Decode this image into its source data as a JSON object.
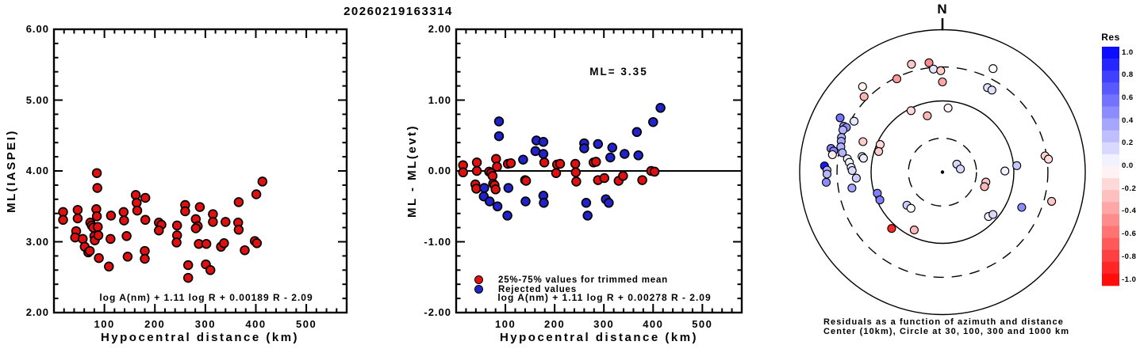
{
  "title": "20260219163314",
  "colors": {
    "accepted": "#e01010",
    "rejected": "#2222cc",
    "outline": "#000000",
    "res_positive": "#0000ff",
    "res_negative": "#ff0000"
  },
  "chart_data": [
    {
      "id": "ml-vs-distance",
      "type": "scatter",
      "xlabel": "Hypocentral distance (km)",
      "ylabel": "ML(IASPEI)",
      "xlim": [
        0,
        580
      ],
      "ylim": [
        2,
        6
      ],
      "x_minor_step": 20,
      "y_minor_step": 0.2,
      "xticks": [
        {
          "v": 100,
          "label": "100"
        },
        {
          "v": 200,
          "label": "200"
        },
        {
          "v": 300,
          "label": "300"
        },
        {
          "v": 400,
          "label": "400"
        },
        {
          "v": 500,
          "label": "500"
        }
      ],
      "yticks": [
        {
          "v": 2,
          "label": "2.00"
        },
        {
          "v": 3,
          "label": "3.00"
        },
        {
          "v": 4,
          "label": "4.00"
        },
        {
          "v": 5,
          "label": "5.00"
        },
        {
          "v": 6,
          "label": "6.00"
        }
      ],
      "annotation": "log A(nm) + 1.11 log R + 0.00189 R - 2.09",
      "point_color": "#e01010",
      "points": [
        [
          18,
          3.42
        ],
        [
          18,
          3.31
        ],
        [
          47,
          3.45
        ],
        [
          47,
          3.33
        ],
        [
          44,
          3.15
        ],
        [
          42,
          3.06
        ],
        [
          57,
          3.04
        ],
        [
          61,
          2.93
        ],
        [
          68,
          2.85
        ],
        [
          72,
          3.27
        ],
        [
          75,
          3.23
        ],
        [
          78,
          3.2
        ],
        [
          71,
          2.87
        ],
        [
          80,
          3.08
        ],
        [
          81,
          3.02
        ],
        [
          85,
          3.97
        ],
        [
          86,
          3.76
        ],
        [
          84,
          3.46
        ],
        [
          85,
          3.36
        ],
        [
          87,
          3.21
        ],
        [
          88,
          3.09
        ],
        [
          89,
          2.77
        ],
        [
          109,
          2.65
        ],
        [
          113,
          3.37
        ],
        [
          112,
          3.04
        ],
        [
          138,
          3.42
        ],
        [
          139,
          3.3
        ],
        [
          144,
          3.08
        ],
        [
          146,
          2.79
        ],
        [
          162,
          3.66
        ],
        [
          164,
          3.55
        ],
        [
          165,
          3.44
        ],
        [
          181,
          3.62
        ],
        [
          181,
          3.31
        ],
        [
          180,
          2.87
        ],
        [
          180,
          2.76
        ],
        [
          208,
          3.27
        ],
        [
          213,
          3.24
        ],
        [
          208,
          3.16
        ],
        [
          244,
          3.23
        ],
        [
          244,
          3.09
        ],
        [
          243,
          2.99
        ],
        [
          260,
          3.52
        ],
        [
          260,
          3.43
        ],
        [
          266,
          2.67
        ],
        [
          266,
          2.49
        ],
        [
          281,
          3.32
        ],
        [
          285,
          3.22
        ],
        [
          281,
          3.19
        ],
        [
          289,
          3.49
        ],
        [
          287,
          2.97
        ],
        [
          302,
          2.97
        ],
        [
          315,
          3.39
        ],
        [
          315,
          3.28
        ],
        [
          301,
          2.68
        ],
        [
          310,
          2.6
        ],
        [
          331,
          2.93
        ],
        [
          337,
          2.98
        ],
        [
          340,
          3.28
        ],
        [
          365,
          3.27
        ],
        [
          366,
          3.17
        ],
        [
          366,
          3.56
        ],
        [
          378,
          2.88
        ],
        [
          398,
          3.01
        ],
        [
          402,
          2.98
        ],
        [
          401,
          3.67
        ],
        [
          413,
          3.85
        ]
      ]
    },
    {
      "id": "residual-vs-distance",
      "type": "scatter",
      "xlabel": "Hypocentral distance (km)",
      "ylabel": "ML - ML(evt)",
      "xlim": [
        0,
        580
      ],
      "ylim": [
        -2,
        2
      ],
      "x_minor_step": 20,
      "y_minor_step": 0.2,
      "xticks": [
        {
          "v": 100,
          "label": "100"
        },
        {
          "v": 200,
          "label": "200"
        },
        {
          "v": 300,
          "label": "300"
        },
        {
          "v": 400,
          "label": "400"
        },
        {
          "v": 500,
          "label": "500"
        }
      ],
      "yticks": [
        {
          "v": -2,
          "label": "-2.00"
        },
        {
          "v": -1,
          "label": "-1.00"
        },
        {
          "v": 0,
          "label": "0.00"
        },
        {
          "v": 1,
          "label": "1.00"
        },
        {
          "v": 2,
          "label": "2.00"
        }
      ],
      "ml_label": "ML= 3.35",
      "zero_line_y": 0,
      "annotation": "log A(nm) + 1.11 log R + 0.00278 R - 2.09",
      "legend": [
        {
          "label": "25%-75% values for trimmed mean",
          "color": "#e01010"
        },
        {
          "label": "Rejected values",
          "color": "#2222cc"
        }
      ],
      "series": [
        {
          "name": "25%-75% values for trimmed mean",
          "color": "#e01010",
          "points": [
            [
              14,
              0.08
            ],
            [
              14,
              -0.02
            ],
            [
              39,
              -0.19
            ],
            [
              41,
              -0.25
            ],
            [
              42,
              0.12
            ],
            [
              42,
              0.0
            ],
            [
              67,
              -0.01
            ],
            [
              71,
              -0.03
            ],
            [
              74,
              -0.07
            ],
            [
              75,
              -0.18
            ],
            [
              78,
              -0.2
            ],
            [
              80,
              -0.26
            ],
            [
              81,
              0.17
            ],
            [
              83,
              0.06
            ],
            [
              105,
              0.1
            ],
            [
              111,
              0.11
            ],
            [
              140,
              -0.13
            ],
            [
              142,
              -0.14
            ],
            [
              179,
              0.12
            ],
            [
              203,
              -0.03
            ],
            [
              205,
              0.09
            ],
            [
              211,
              0.1
            ],
            [
              242,
              0.1
            ],
            [
              243,
              -0.02
            ],
            [
              244,
              -0.15
            ],
            [
              279,
              0.12
            ],
            [
              284,
              0.13
            ],
            [
              288,
              -0.13
            ],
            [
              301,
              -0.1
            ],
            [
              330,
              -0.14
            ],
            [
              339,
              -0.07
            ],
            [
              378,
              -0.13
            ],
            [
              396,
              0.0
            ],
            [
              403,
              -0.01
            ]
          ]
        },
        {
          "name": "Rejected values",
          "color": "#2222cc",
          "points": [
            [
              56,
              -0.36
            ],
            [
              57,
              -0.24
            ],
            [
              68,
              -0.43
            ],
            [
              84,
              -0.5
            ],
            [
              87,
              0.7
            ],
            [
              87,
              0.49
            ],
            [
              104,
              -0.63
            ],
            [
              106,
              -0.24
            ],
            [
              136,
              0.16
            ],
            [
              141,
              -0.43
            ],
            [
              161,
              0.28
            ],
            [
              163,
              0.43
            ],
            [
              177,
              0.41
            ],
            [
              177,
              0.24
            ],
            [
              177,
              -0.35
            ],
            [
              178,
              -0.45
            ],
            [
              260,
              0.39
            ],
            [
              260,
              0.32
            ],
            [
              264,
              -0.45
            ],
            [
              267,
              -0.63
            ],
            [
              288,
              0.38
            ],
            [
              304,
              -0.4
            ],
            [
              310,
              -0.45
            ],
            [
              313,
              0.19
            ],
            [
              317,
              0.33
            ],
            [
              342,
              0.24
            ],
            [
              367,
              0.55
            ],
            [
              370,
              0.22
            ],
            [
              400,
              0.69
            ],
            [
              415,
              0.89
            ]
          ]
        }
      ]
    },
    {
      "id": "azimuth-distance-residuals",
      "type": "polar-scatter",
      "north_label": "N",
      "center_km": 10,
      "rings": [
        {
          "km": 30,
          "style": "dashed"
        },
        {
          "km": 100,
          "style": "solid"
        },
        {
          "km": 300,
          "style": "dashed"
        },
        {
          "km": 1000,
          "style": "solid"
        }
      ],
      "caption_line1": "Residuals as a function of azimuth and distance",
      "caption_line2": "Center (10km), Circle at 30, 100, 300 and 1000 km",
      "colorbar": {
        "title": "Res",
        "min": -1.0,
        "max": 1.0,
        "segments": 20,
        "ticks": [
          "1.0",
          "0.8",
          "0.6",
          "0.4",
          "0.2",
          "0.0",
          "-0.2",
          "-0.4",
          "-0.6",
          "-0.8",
          "-1.0"
        ]
      },
      "points": [
        [
          298,
          420,
          0.55
        ],
        [
          295,
          336,
          0.45
        ],
        [
          295,
          305,
          0.45
        ],
        [
          300,
          269,
          0.1
        ],
        [
          293,
          327,
          0.3
        ],
        [
          289,
          313,
          0.3
        ],
        [
          287,
          304,
          0.35
        ],
        [
          282,
          394,
          0.5
        ],
        [
          281,
          357,
          0.5
        ],
        [
          279,
          363,
          -0.08
        ],
        [
          284,
          293,
          0.3
        ],
        [
          281,
          268,
          0.3
        ],
        [
          273,
          451,
          0.9
        ],
        [
          271,
          414,
          0.3
        ],
        [
          269,
          414,
          0.28
        ],
        [
          265,
          430,
          0.45
        ],
        [
          278,
          221,
          0.05
        ],
        [
          276,
          205,
          0.05
        ],
        [
          273,
          191,
          0.1
        ],
        [
          271,
          184,
          0.15
        ],
        [
          266,
          162,
          0.2
        ],
        [
          260,
          194,
          0.35
        ],
        [
          281,
          140,
          0.05
        ],
        [
          280,
          133,
          0.08
        ],
        [
          291,
          156,
          -0.2
        ],
        [
          294,
          90,
          -0.15
        ],
        [
          288,
          87,
          -0.2
        ],
        [
          252,
          91,
          0.5
        ],
        [
          246,
          91,
          0.5
        ],
        [
          227,
          48,
          0.2
        ],
        [
          221,
          47,
          0.0
        ],
        [
          222,
          116,
          -0.85
        ],
        [
          206,
          80,
          -0.28
        ],
        [
          344,
          376,
          -0.22
        ],
        [
          353,
          352,
          -0.45
        ],
        [
          355,
          283,
          0.1
        ],
        [
          359,
          266,
          -0.2
        ],
        [
          360,
          185,
          -0.35
        ],
        [
          334,
          287,
          -0.4
        ],
        [
          317,
          437,
          -0.05
        ],
        [
          314,
          336,
          -0.3
        ],
        [
          333,
          93,
          -0.15
        ],
        [
          345,
          66,
          -0.28
        ],
        [
          5,
          80,
          -0.05
        ],
        [
          26,
          414,
          0.0
        ],
        [
          28,
          221,
          0.12
        ],
        [
          31,
          221,
          0.12
        ],
        [
          61,
          17,
          0.15
        ],
        [
          80,
          18,
          0.15
        ],
        [
          85,
          111,
          0.22
        ],
        [
          89,
          75,
          0.05
        ],
        [
          81,
          285,
          -0.18
        ],
        [
          83,
          313,
          -0.15
        ],
        [
          103,
          42,
          -0.22
        ],
        [
          109,
          42,
          -0.28
        ],
        [
          134,
          79,
          0.05
        ],
        [
          130,
          84,
          0.15
        ],
        [
          114,
          164,
          0.45
        ],
        [
          105,
          383,
          -0.22
        ]
      ]
    }
  ]
}
